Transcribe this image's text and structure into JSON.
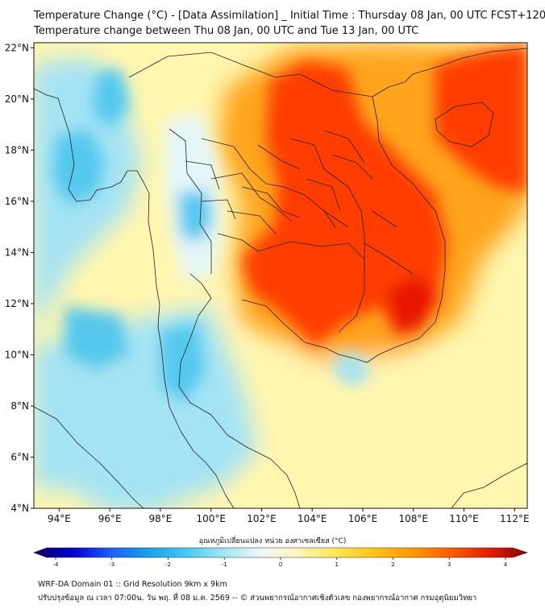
{
  "title": {
    "line1": "Temperature Change (°C) - [Data Assimilation] _ Initial Time : Thursday 08 Jan, 00 UTC FCST+120",
    "line2": "Temperature change between Thu 08 Jan, 00 UTC and Tue 13 Jan, 00 UTC"
  },
  "axes": {
    "lat_labels": [
      "22°N",
      "20°N",
      "18°N",
      "16°N",
      "14°N",
      "12°N",
      "10°N",
      "8°N",
      "6°N",
      "4°N"
    ],
    "lat_values": [
      22,
      20,
      18,
      16,
      14,
      12,
      10,
      8,
      6,
      4
    ],
    "lon_labels": [
      "94°E",
      "96°E",
      "98°E",
      "100°E",
      "102°E",
      "104°E",
      "106°E",
      "108°E",
      "110°E",
      "112°E"
    ],
    "lon_values": [
      94,
      96,
      98,
      100,
      102,
      104,
      106,
      108,
      110,
      112
    ],
    "lon_range": [
      93,
      112.5
    ],
    "lat_range": [
      4,
      22.2
    ]
  },
  "colorbar": {
    "label": "อุณหภูมิเปลี่ยนแปลง หน่วย องศาเซลเซียส (°C)",
    "ticks": [
      "-4",
      "-3",
      "-2",
      "-1",
      "0",
      "1",
      "2",
      "3",
      "4"
    ],
    "tick_values": [
      -4,
      -3,
      -2,
      -1,
      0,
      1,
      2,
      3,
      4
    ],
    "range": [
      -4,
      4
    ],
    "colors": [
      "#0c0064",
      "#0000cd",
      "#1e5aff",
      "#17a2e8",
      "#46c8f0",
      "#a0e6f5",
      "#eef8fa",
      "#fff5b4",
      "#ffe650",
      "#ffc314",
      "#ff9600",
      "#ff5a00",
      "#e61e00",
      "#8c0000"
    ]
  },
  "field": {
    "colors": {
      "blue": "#55c8ee",
      "lightblue": "#a4e3f4",
      "pale": "#e4f6f8",
      "yellow": "#ffe868",
      "paleyellow": "#fff6b0",
      "orange": "#ffa41e",
      "red": "#ff3c00",
      "darkred": "#e81800"
    }
  },
  "footer": {
    "line1": "WRF-DA Domain 01 :: Grid Resolution 9km x 9km",
    "line2": "ปรับปรุงข้อมูล ณ เวลา 07:00น. วัน พฤ. ที่ 08 ม.ค. 2569 -- © ส่วนพยากรณ์อากาศเชิงตัวเลข กองพยากรณ์อากาศ กรมอุตุนิยมวิทยา"
  }
}
